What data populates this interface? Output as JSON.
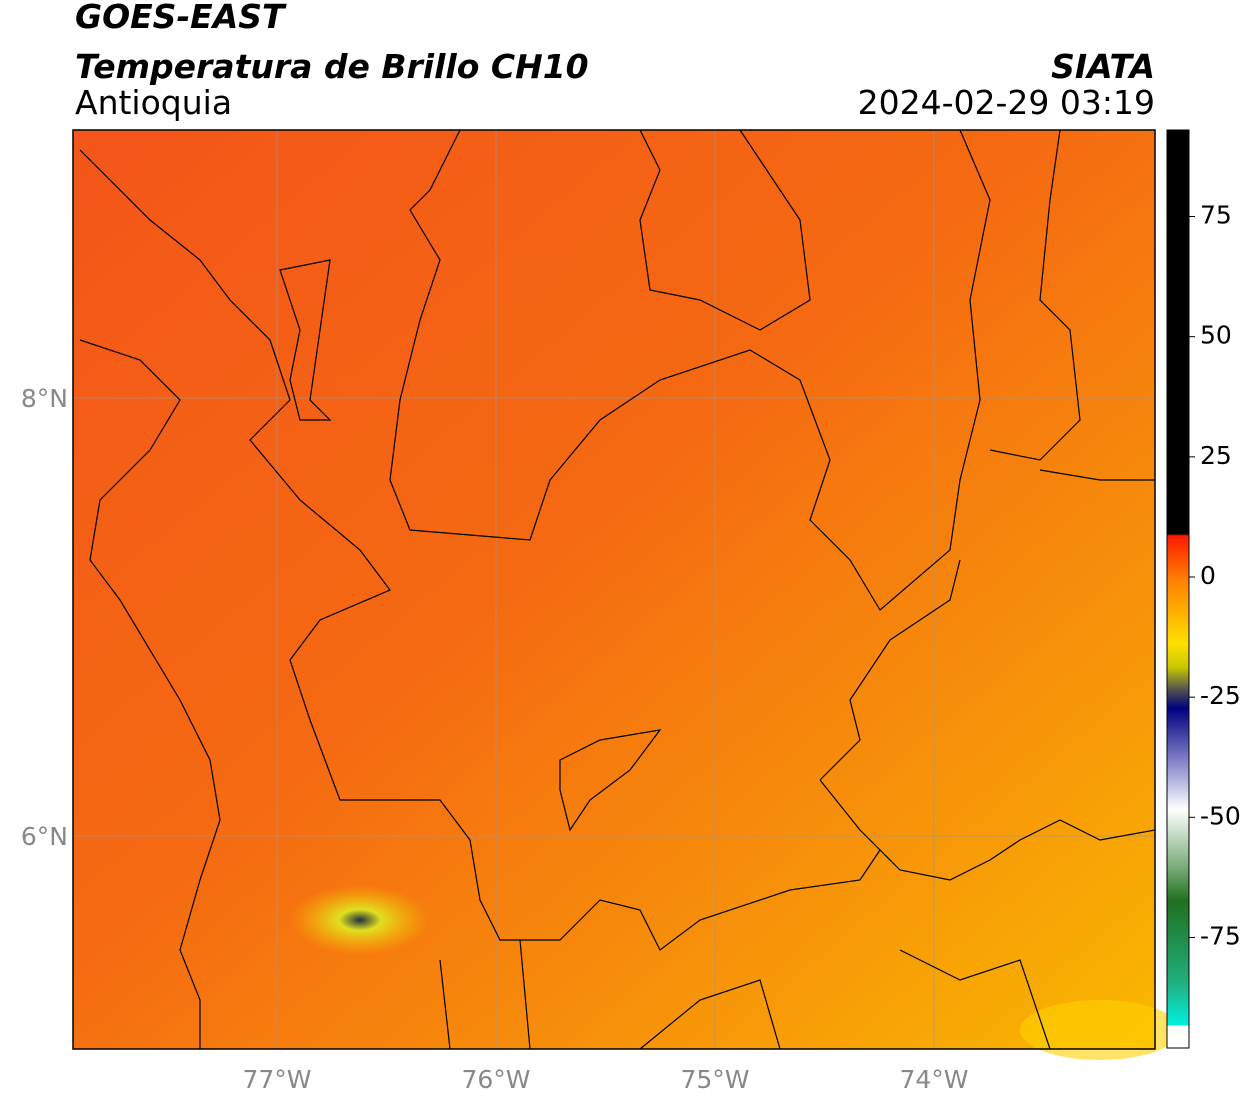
{
  "header": {
    "title": "GOES-EAST",
    "subtitle": "Temperatura de Brillo CH10",
    "region": "Antioquia",
    "source": "SIATA",
    "datetime": "2024-02-29 03:19"
  },
  "map": {
    "lon_labels": [
      "77°W",
      "76°W",
      "75°W",
      "74°W"
    ],
    "lat_labels": [
      "8°N",
      "6°N"
    ]
  },
  "colorbar": {
    "lim": [
      -98,
      93
    ],
    "ticks": [
      75,
      50,
      25,
      0,
      -25,
      -50,
      -75
    ]
  }
}
